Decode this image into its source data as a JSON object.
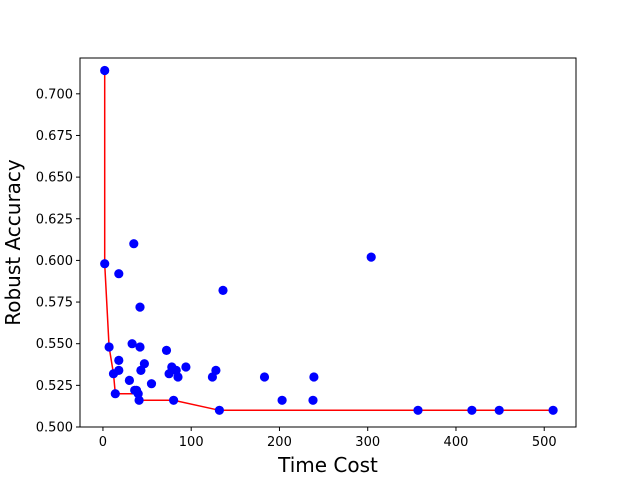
{
  "chart_data": {
    "type": "scatter",
    "title": "",
    "xlabel": "Time Cost",
    "ylabel": "Robust Accuracy",
    "xlim": [
      -26,
      536
    ],
    "ylim": [
      0.5,
      0.7215
    ],
    "xticks": [
      0,
      100,
      200,
      300,
      400,
      500
    ],
    "yticks": [
      0.5,
      0.525,
      0.55,
      0.575,
      0.6,
      0.625,
      0.65,
      0.675,
      0.7
    ],
    "xtick_labels": [
      "0",
      "100",
      "200",
      "300",
      "400",
      "500"
    ],
    "ytick_labels": [
      "0.500",
      "0.525",
      "0.550",
      "0.575",
      "0.600",
      "0.625",
      "0.650",
      "0.675",
      "0.700"
    ],
    "grid": false,
    "colors": {
      "points": "#0000ff",
      "frontier": "#ff0000"
    },
    "series": [
      {
        "type": "scatter",
        "points": [
          [
            2,
            0.714
          ],
          [
            2,
            0.598
          ],
          [
            7,
            0.548
          ],
          [
            12,
            0.532
          ],
          [
            14,
            0.52
          ],
          [
            18,
            0.592
          ],
          [
            18,
            0.54
          ],
          [
            18,
            0.534
          ],
          [
            30,
            0.528
          ],
          [
            33,
            0.55
          ],
          [
            35,
            0.61
          ],
          [
            36,
            0.522
          ],
          [
            38,
            0.522
          ],
          [
            40,
            0.52
          ],
          [
            41,
            0.516
          ],
          [
            42,
            0.572
          ],
          [
            42,
            0.548
          ],
          [
            43,
            0.534
          ],
          [
            47,
            0.538
          ],
          [
            55,
            0.526
          ],
          [
            72,
            0.546
          ],
          [
            75,
            0.532
          ],
          [
            78,
            0.536
          ],
          [
            80,
            0.516
          ],
          [
            83,
            0.534
          ],
          [
            85,
            0.53
          ],
          [
            94,
            0.536
          ],
          [
            124,
            0.53
          ],
          [
            128,
            0.534
          ],
          [
            132,
            0.51
          ],
          [
            136,
            0.582
          ],
          [
            183,
            0.53
          ],
          [
            203,
            0.516
          ],
          [
            238,
            0.516
          ],
          [
            239,
            0.53
          ],
          [
            304,
            0.602
          ],
          [
            357,
            0.51
          ],
          [
            418,
            0.51
          ],
          [
            449,
            0.51
          ],
          [
            510,
            0.51
          ]
        ]
      },
      {
        "type": "line",
        "points": [
          [
            2,
            0.714
          ],
          [
            2,
            0.598
          ],
          [
            7,
            0.548
          ],
          [
            12,
            0.532
          ],
          [
            14,
            0.52
          ],
          [
            36,
            0.52
          ],
          [
            41,
            0.516
          ],
          [
            80,
            0.516
          ],
          [
            132,
            0.51
          ],
          [
            510,
            0.51
          ]
        ]
      }
    ]
  }
}
